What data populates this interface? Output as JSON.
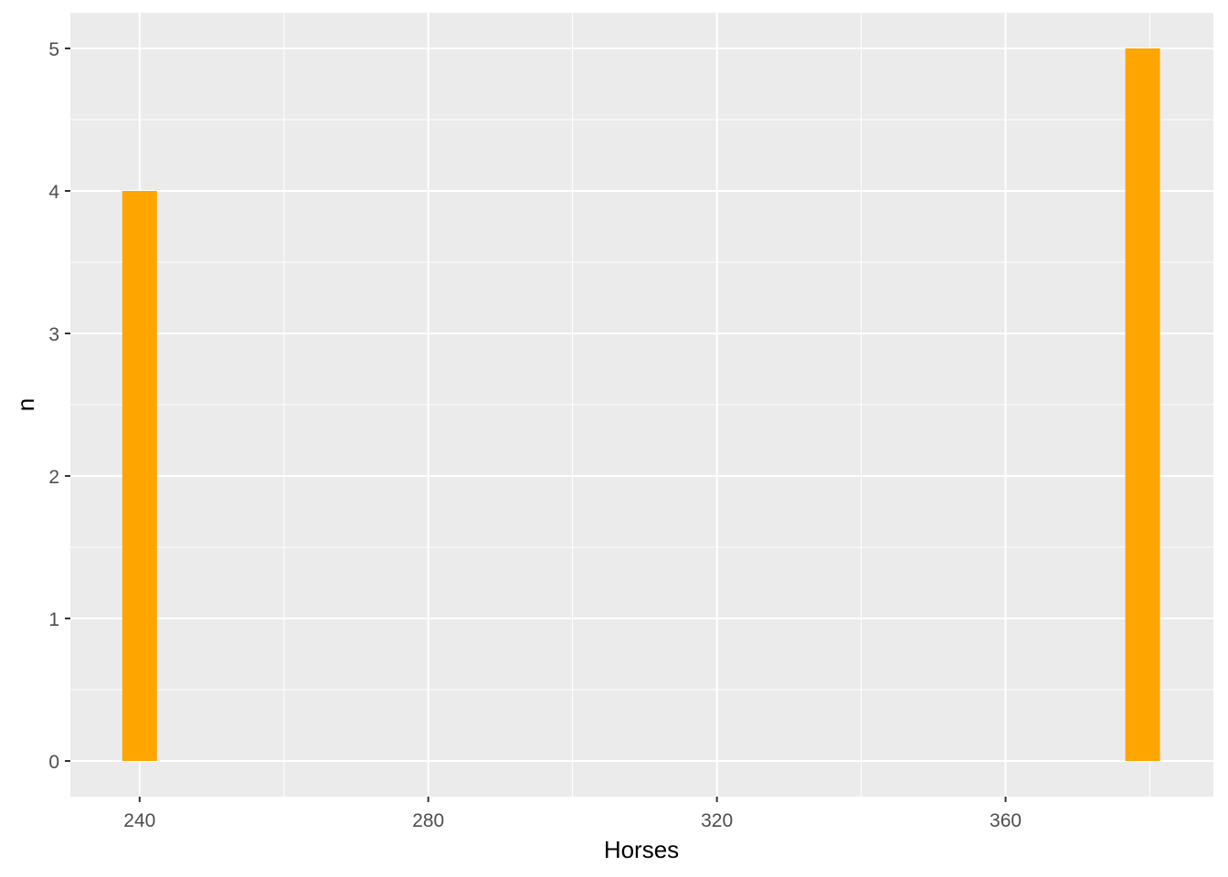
{
  "chart_data": {
    "type": "bar",
    "xlabel": "Horses",
    "ylabel": "n",
    "xlim": [
      230.4,
      388.8
    ],
    "ylim": [
      -0.25,
      5.25
    ],
    "x_ticks": [
      240,
      280,
      320,
      360
    ],
    "x_minor_ticks": [
      260,
      300,
      340,
      380
    ],
    "y_ticks": [
      0,
      1,
      2,
      3,
      4,
      5
    ],
    "y_minor_ticks": [
      0.5,
      1.5,
      2.5,
      3.5,
      4.5
    ],
    "bar_width": 4.8,
    "bars": [
      {
        "x": 240,
        "value": 4
      },
      {
        "x": 379,
        "value": 5
      }
    ],
    "grid": true,
    "colors": {
      "panel_background": "#ebebeb",
      "grid": "#ffffff",
      "bar": "#ffa500"
    }
  }
}
